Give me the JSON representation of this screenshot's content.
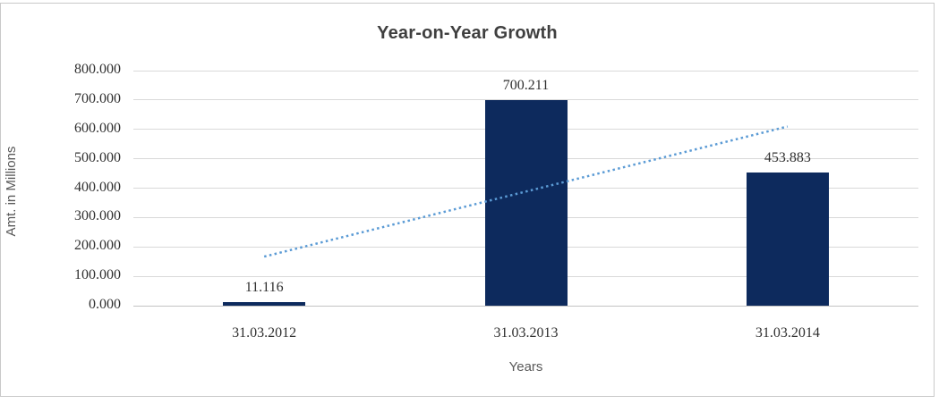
{
  "colors": {
    "bar": "#0d2a5d",
    "trendline": "#5b9bd5",
    "gridline": "#d9d9d9",
    "axis_line": "#c3c3c3",
    "title_text": "#3f3f3f",
    "label_text": "#303030",
    "axis_title_text": "#595959",
    "frame_border": "#c9c9c9"
  },
  "chart_data": {
    "type": "bar",
    "title": "Year-on-Year Growth",
    "xlabel": "Years",
    "ylabel": "Amt. in Millions",
    "categories": [
      "31.03.2012",
      "31.03.2013",
      "31.03.2014"
    ],
    "values": [
      11.116,
      700.211,
      453.883
    ],
    "data_labels": [
      "11.116",
      "700.211",
      "453.883"
    ],
    "y_ticks": [
      "800.000",
      "700.000",
      "600.000",
      "500.000",
      "400.000",
      "300.000",
      "200.000",
      "100.000",
      "0.000"
    ],
    "ylim": [
      0,
      800
    ],
    "grid": "horizontal-only",
    "legend": "none",
    "trendline": {
      "style": "dotted",
      "series": "linear-trend-of-values",
      "start_value": 167.0,
      "end_value": 609.8
    }
  }
}
